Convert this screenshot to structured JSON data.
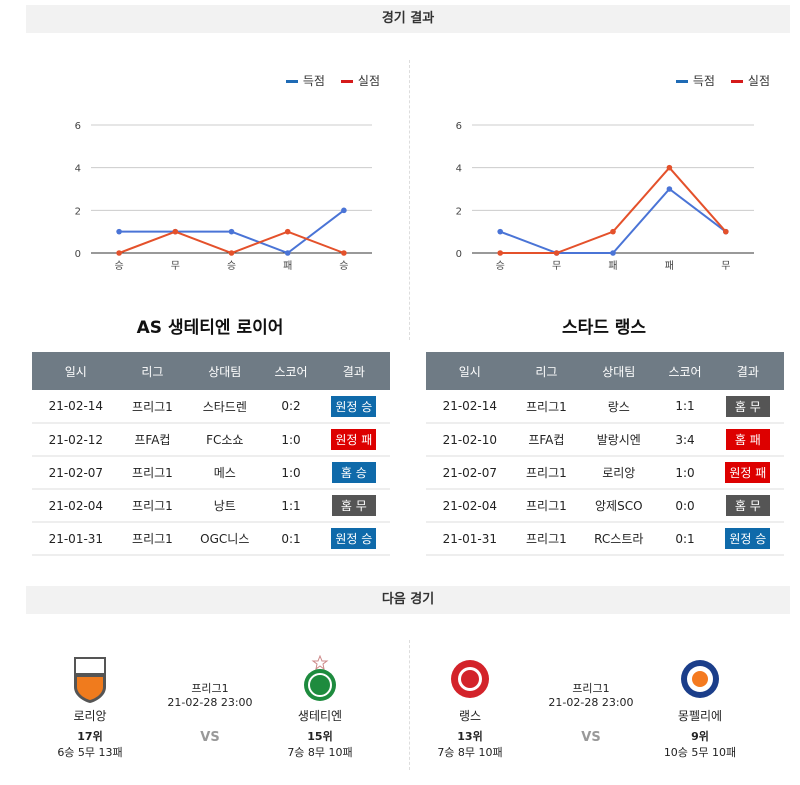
{
  "results_header": "경기 결과",
  "next_header": "다음 경기",
  "legend": {
    "scored": "득점",
    "conceded": "실점"
  },
  "colors": {
    "scored": "#4a74d6",
    "conceded": "#e4512b",
    "legend_scored": "#1f6bb5",
    "legend_conceded": "#d51a1a",
    "win": "#0f6aaa",
    "loss": "#dd0000",
    "draw": "#555555",
    "table_header": "#6f7b85"
  },
  "chart_data": [
    {
      "type": "line",
      "categories": [
        "승",
        "무",
        "승",
        "패",
        "승"
      ],
      "yticks": [
        0,
        2,
        4,
        6
      ],
      "ylim": [
        0,
        6
      ],
      "grid": true,
      "legend_position": "top-right",
      "series": [
        {
          "name": "득점",
          "values": [
            1,
            1,
            1,
            0,
            2
          ]
        },
        {
          "name": "실점",
          "values": [
            0,
            1,
            0,
            1,
            0
          ]
        }
      ]
    },
    {
      "type": "line",
      "categories": [
        "승",
        "무",
        "패",
        "패",
        "무"
      ],
      "yticks": [
        0,
        2,
        4,
        6
      ],
      "ylim": [
        0,
        6
      ],
      "grid": true,
      "legend_position": "top-right",
      "series": [
        {
          "name": "득점",
          "values": [
            1,
            0,
            0,
            3,
            1
          ]
        },
        {
          "name": "실점",
          "values": [
            0,
            0,
            1,
            4,
            1
          ]
        }
      ]
    }
  ],
  "columns": [
    "일시",
    "리그",
    "상대팀",
    "스코어",
    "결과"
  ],
  "teams": [
    {
      "name": "AS 생테티엔 로이어",
      "rows": [
        [
          "21-02-14",
          "프리그1",
          "스타드렌",
          "0:2",
          "원정 승",
          "win"
        ],
        [
          "21-02-12",
          "프FA컵",
          "FC소쇼",
          "1:0",
          "원정 패",
          "loss"
        ],
        [
          "21-02-07",
          "프리그1",
          "메스",
          "1:0",
          "홈 승",
          "win"
        ],
        [
          "21-02-04",
          "프리그1",
          "낭트",
          "1:1",
          "홈 무",
          "draw"
        ],
        [
          "21-01-31",
          "프리그1",
          "OGC니스",
          "0:1",
          "원정 승",
          "win"
        ]
      ]
    },
    {
      "name": "스타드 랭스",
      "rows": [
        [
          "21-02-14",
          "프리그1",
          "랑스",
          "1:1",
          "홈 무",
          "draw"
        ],
        [
          "21-02-10",
          "프FA컵",
          "발랑시엔",
          "3:4",
          "홈 패",
          "loss"
        ],
        [
          "21-02-07",
          "프리그1",
          "로리앙",
          "1:0",
          "원정 패",
          "loss"
        ],
        [
          "21-02-04",
          "프리그1",
          "앙제SCO",
          "0:0",
          "홈 무",
          "draw"
        ],
        [
          "21-01-31",
          "프리그1",
          "RC스트라",
          "0:1",
          "원정 승",
          "win"
        ]
      ]
    }
  ],
  "next_matches": [
    {
      "league": "프리그1",
      "datetime": "21-02-28 23:00",
      "vs": "VS",
      "home": {
        "name": "로리앙",
        "rank": "17위",
        "record": "6승 5무 13패",
        "logo_text": "FC LORIENT"
      },
      "away": {
        "name": "생테티엔",
        "rank": "15위",
        "record": "7승 8무 10패"
      }
    },
    {
      "league": "프리그1",
      "datetime": "21-02-28 23:00",
      "vs": "VS",
      "home": {
        "name": "랭스",
        "rank": "13위",
        "record": "7승 8무 10패",
        "logo_text": "S R"
      },
      "away": {
        "name": "몽펠리에",
        "rank": "9위",
        "record": "10승 5무 10패"
      }
    }
  ]
}
